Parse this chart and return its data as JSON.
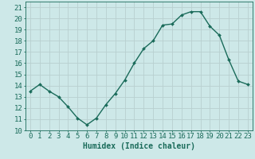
{
  "x": [
    0,
    1,
    2,
    3,
    4,
    5,
    6,
    7,
    8,
    9,
    10,
    11,
    12,
    13,
    14,
    15,
    16,
    17,
    18,
    19,
    20,
    21,
    22,
    23
  ],
  "y": [
    13.5,
    14.1,
    13.5,
    13.0,
    12.1,
    11.1,
    10.5,
    11.1,
    12.3,
    13.3,
    14.5,
    16.0,
    17.3,
    18.0,
    19.4,
    19.5,
    20.3,
    20.6,
    20.6,
    19.3,
    18.5,
    16.3,
    14.4,
    14.1
  ],
  "line_color": "#1a6b5a",
  "marker": "D",
  "marker_size": 2.0,
  "bg_color": "#cde8e8",
  "grid_color_major": "#b8d0d0",
  "grid_color_minor": "#d4e8e8",
  "xlabel": "Humidex (Indice chaleur)",
  "ylabel_ticks": [
    10,
    11,
    12,
    13,
    14,
    15,
    16,
    17,
    18,
    19,
    20,
    21
  ],
  "xlim": [
    -0.5,
    23.5
  ],
  "ylim": [
    10.0,
    21.5
  ],
  "xlabel_fontsize": 7.0,
  "tick_fontsize": 6.5
}
